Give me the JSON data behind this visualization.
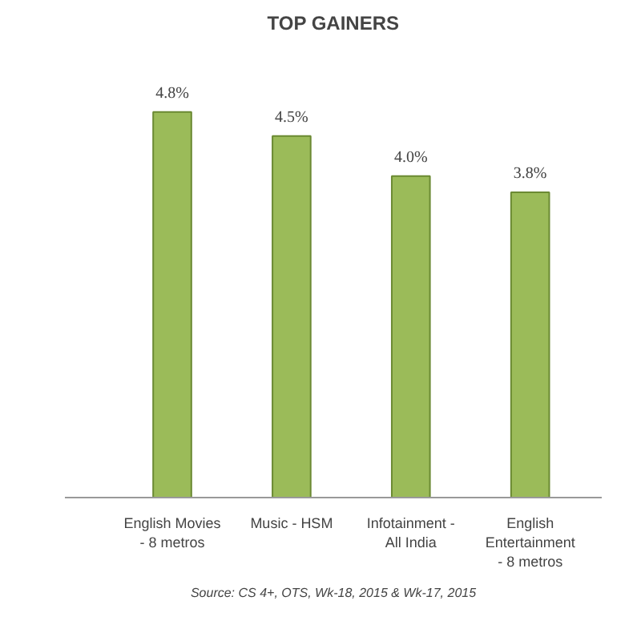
{
  "chart_data": {
    "type": "bar",
    "title": "TOP GAINERS",
    "categories": [
      "English Movies - 8 metros",
      "Music - HSM",
      "Infotainment - All India",
      "English Entertainment - 8 metros"
    ],
    "values": [
      4.8,
      4.5,
      4.0,
      3.8
    ],
    "value_labels": [
      "4.8%",
      "4.5%",
      "4.0%",
      "3.8%"
    ],
    "color": "#9bbb59",
    "grid": false,
    "annotations": [
      "Source: CS 4+, OTS, Wk-18, 2015 & Wk-17, 2015"
    ]
  }
}
